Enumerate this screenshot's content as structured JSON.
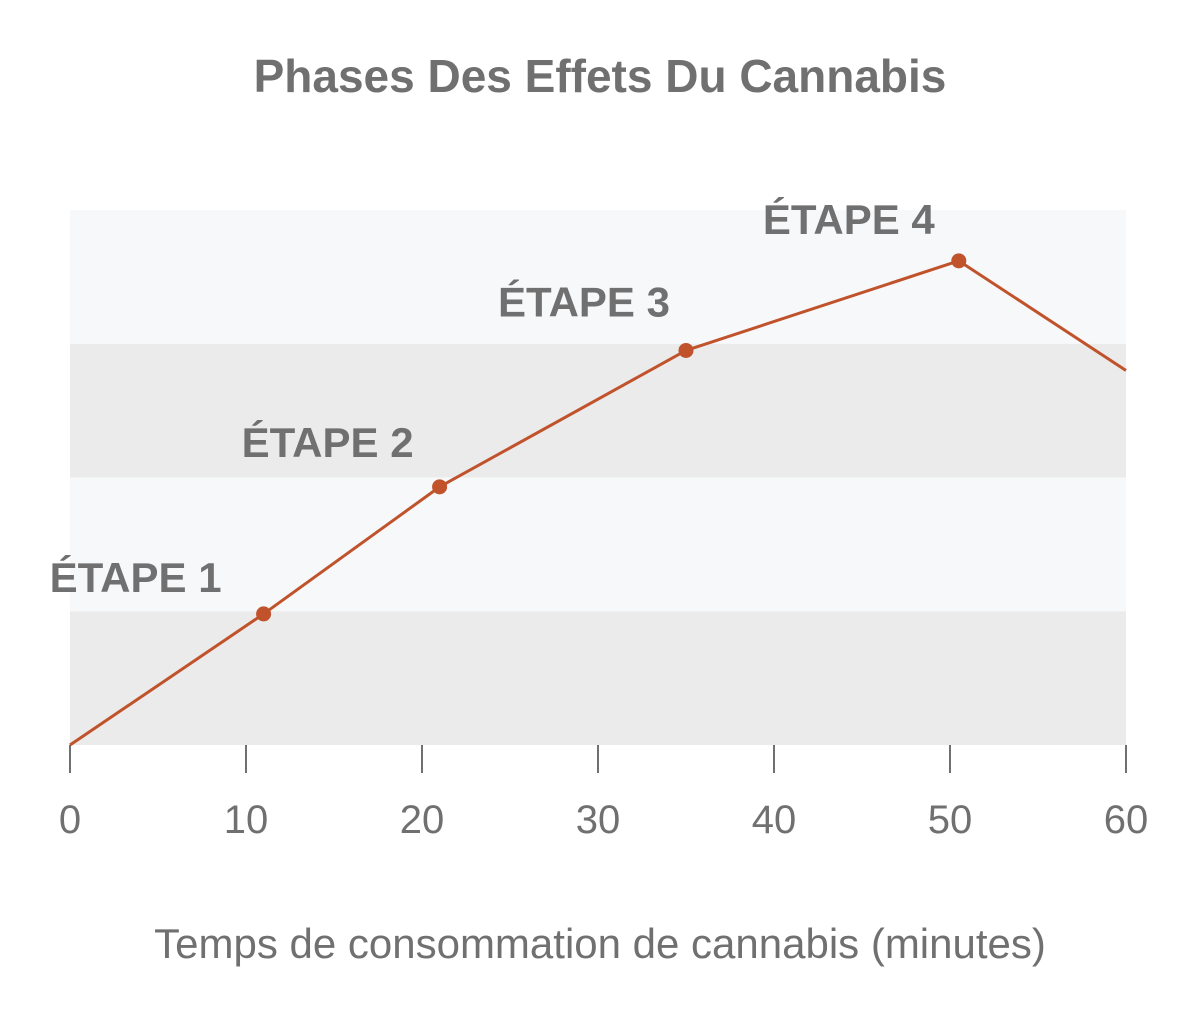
{
  "chart_data": {
    "type": "line",
    "title": "Phases Des Effets Du Cannabis",
    "xlabel": "Temps de consommation de cannabis (minutes)",
    "ylabel": "",
    "xlim": [
      0,
      60
    ],
    "ylim": [
      0,
      4
    ],
    "x_ticks": [
      "0",
      "10",
      "20",
      "30",
      "40",
      "50",
      "60"
    ],
    "band_colors": [
      "#ebebeb",
      "#f7f8fa"
    ],
    "line_color": "#c0532b",
    "text_color": "#707070",
    "series": [
      {
        "x": [
          0,
          11,
          21,
          35,
          50.5,
          60
        ],
        "y": [
          0,
          0.98,
          1.93,
          2.95,
          3.62,
          2.8
        ]
      }
    ],
    "stages": [
      {
        "label": "ÉTAPE 1",
        "x": 11,
        "y": 0.98
      },
      {
        "label": "ÉTAPE 2",
        "x": 21,
        "y": 1.93
      },
      {
        "label": "ÉTAPE 3",
        "x": 35,
        "y": 2.95
      },
      {
        "label": "ÉTAPE 4",
        "x": 50.5,
        "y": 3.62
      }
    ]
  }
}
